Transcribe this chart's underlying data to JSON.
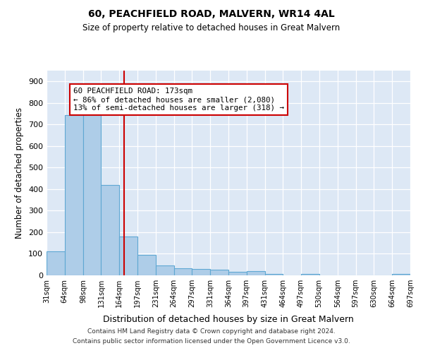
{
  "title1": "60, PEACHFIELD ROAD, MALVERN, WR14 4AL",
  "title2": "Size of property relative to detached houses in Great Malvern",
  "xlabel": "Distribution of detached houses by size in Great Malvern",
  "ylabel": "Number of detached properties",
  "bar_left_edges": [
    31,
    64,
    98,
    131,
    164,
    197,
    231,
    264,
    297,
    331,
    364,
    397,
    431,
    464,
    497,
    530,
    564,
    597,
    630,
    664
  ],
  "bar_widths": [
    33,
    34,
    33,
    33,
    33,
    34,
    33,
    33,
    34,
    33,
    33,
    34,
    33,
    33,
    33,
    34,
    33,
    33,
    34,
    33
  ],
  "bar_heights": [
    113,
    743,
    748,
    418,
    180,
    96,
    47,
    33,
    30,
    27,
    17,
    20,
    5,
    0,
    5,
    0,
    0,
    0,
    0,
    5
  ],
  "bar_color": "#aecde8",
  "bar_edge_color": "#5fa8d3",
  "vline_x": 173,
  "vline_color": "#cc0000",
  "annotation_text": "60 PEACHFIELD ROAD: 173sqm\n← 86% of detached houses are smaller (2,080)\n13% of semi-detached houses are larger (318) →",
  "annotation_box_color": "white",
  "annotation_box_edgecolor": "#cc0000",
  "ylim": [
    0,
    950
  ],
  "xlim": [
    31,
    697
  ],
  "background_color": "#dde8f5",
  "footer_text": "Contains HM Land Registry data © Crown copyright and database right 2024.\nContains public sector information licensed under the Open Government Licence v3.0.",
  "tick_labels": [
    "31sqm",
    "64sqm",
    "98sqm",
    "131sqm",
    "164sqm",
    "197sqm",
    "231sqm",
    "264sqm",
    "297sqm",
    "331sqm",
    "364sqm",
    "397sqm",
    "431sqm",
    "464sqm",
    "497sqm",
    "530sqm",
    "564sqm",
    "597sqm",
    "630sqm",
    "664sqm",
    "697sqm"
  ],
  "tick_positions": [
    31,
    64,
    98,
    131,
    164,
    197,
    231,
    264,
    297,
    331,
    364,
    397,
    431,
    464,
    497,
    530,
    564,
    597,
    630,
    664,
    697
  ]
}
